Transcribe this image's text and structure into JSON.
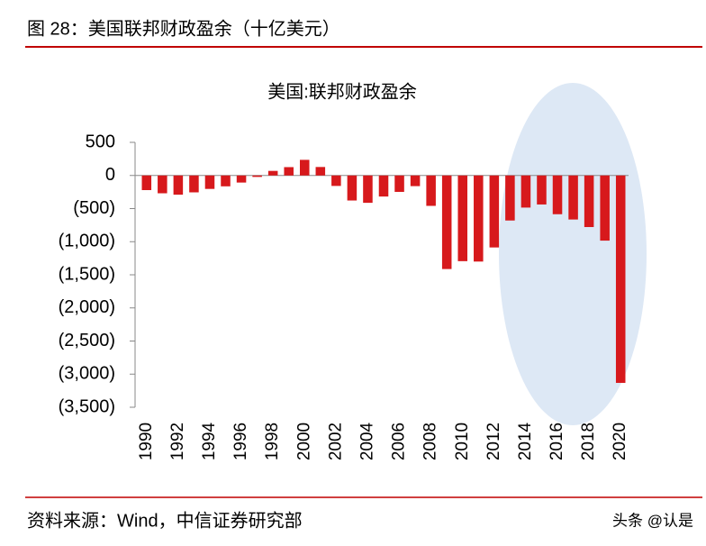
{
  "header": "图 28：美国联邦财政盈余（十亿美元）",
  "source": "资料来源：Wind，中信证券研究部",
  "watermark": "头条 @认是",
  "chart_data": {
    "type": "bar",
    "title": "美国:联邦财政盈余",
    "categories": [
      "1990",
      null,
      "1992",
      null,
      "1994",
      null,
      "1996",
      null,
      "1998",
      null,
      "2000",
      null,
      "2002",
      null,
      "2004",
      null,
      "2006",
      null,
      "2008",
      null,
      "2010",
      null,
      "2012",
      null,
      "2014",
      null,
      "2016",
      null,
      "2018",
      null,
      "2020"
    ],
    "values": [
      -221,
      -269,
      -290,
      -255,
      -203,
      -164,
      -107,
      -22,
      69,
      126,
      236,
      128,
      -158,
      -378,
      -413,
      -318,
      -248,
      -161,
      -459,
      -1413,
      -1294,
      -1300,
      -1087,
      -680,
      -485,
      -438,
      -585,
      -665,
      -779,
      -984,
      -3132
    ],
    "color": "#d7191c",
    "negative_tick_color": "#d7191c",
    "ylim": [
      -3500,
      500
    ],
    "yticks": [
      {
        "value": 500,
        "label": "500"
      },
      0,
      {
        "value": -500,
        "label": "(500)"
      },
      {
        "value": -1000,
        "label": "(1,000)"
      },
      {
        "value": -1500,
        "label": "(1,500)"
      },
      {
        "value": -2000,
        "label": "(2,000)"
      },
      {
        "value": -2500,
        "label": "(2,500)"
      },
      {
        "value": -3000,
        "label": "(3,000)"
      },
      {
        "value": -3500,
        "label": "(3,500)"
      }
    ]
  }
}
